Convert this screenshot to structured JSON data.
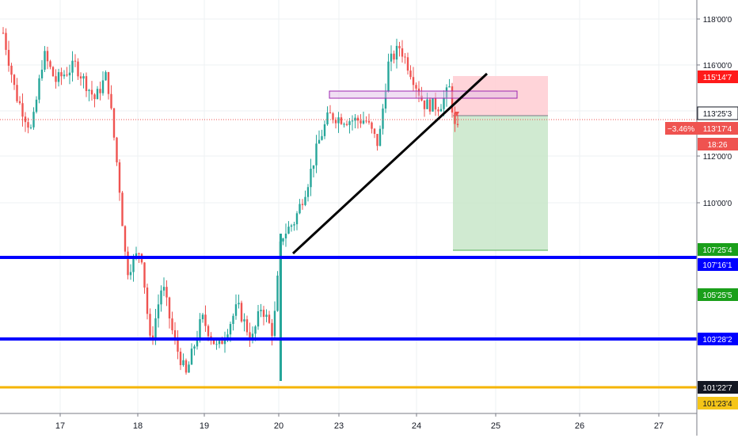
{
  "chart_data": {
    "type": "candlestick",
    "x_tick_labels": [
      "17",
      "18",
      "19",
      "20",
      "23",
      "24",
      "25",
      "26",
      "27"
    ],
    "y_tick_labels": [
      "110'00'0",
      "112'00'0",
      "114'00'0",
      "116'00'0",
      "118'00'0"
    ],
    "price_badges": [
      {
        "label": "115'14'7",
        "bg": "#ff1a1a",
        "fg": "#ffffff"
      },
      {
        "label": "113'25'3",
        "bg": "#ffffff",
        "fg": "#131722"
      },
      {
        "label": "113'17'4",
        "bg": "#ef5350",
        "fg": "#ffffff",
        "prefix": "−3.46%"
      },
      {
        "label": "18:26",
        "bg": "#ef5350",
        "fg": "#ffffff"
      },
      {
        "label": "107'25'4",
        "bg": "#1a9f1a",
        "fg": "#ffffff"
      },
      {
        "label": "107'16'1",
        "bg": "#0000ff",
        "fg": "#ffffff"
      },
      {
        "label": "105'25'5",
        "bg": "#1a9f1a",
        "fg": "#ffffff"
      },
      {
        "label": "103'28'2",
        "bg": "#0000ff",
        "fg": "#ffffff"
      },
      {
        "label": "101'22'7",
        "bg": "#131722",
        "fg": "#ffffff"
      },
      {
        "label": "101'23'4",
        "bg": "#f5c518",
        "fg": "#131722"
      }
    ],
    "horizontal_lines": [
      {
        "name": "support-1",
        "color": "#0000ff"
      },
      {
        "name": "support-2",
        "color": "#0000ff"
      },
      {
        "name": "support-3",
        "color": "#f5b400"
      }
    ],
    "trendline_color": "#000000",
    "colors": {
      "up": "#26a69a",
      "down": "#ef5350",
      "stop_zone": "#ffcdd2",
      "target_zone": "#c8e6c9",
      "rectangle": "#e1bee7"
    }
  }
}
